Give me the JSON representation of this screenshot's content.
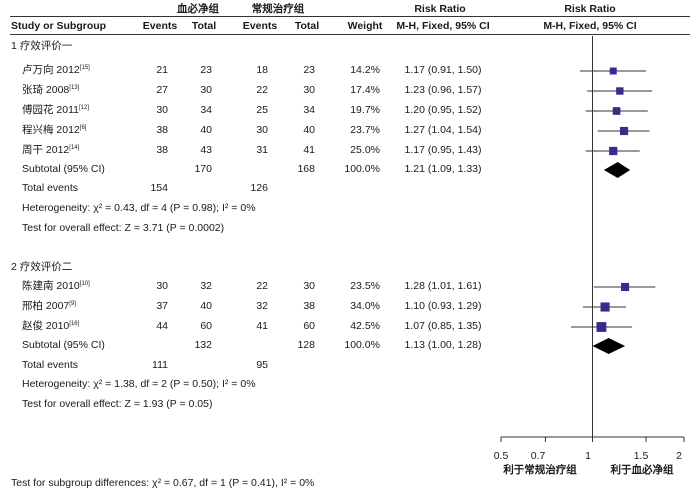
{
  "header": {
    "group1": "血必净组",
    "group2": "常规治疗组",
    "rr1": "Risk Ratio",
    "rr2": "Risk Ratio",
    "study": "Study or Subgroup",
    "events1": "Events",
    "total1": "Total",
    "events2": "Events",
    "total2": "Total",
    "weight": "Weight",
    "method1": "M-H, Fixed, 95% CI",
    "method2": "M-H, Fixed, 95% CI"
  },
  "subgroups": [
    {
      "title": "1  疗效评价一",
      "studies": [
        {
          "name": "卢万向 2012",
          "ref": "[15]",
          "e1": "21",
          "t1": "23",
          "e2": "18",
          "t2": "23",
          "weight": "14.2%",
          "ci": "1.17 (0.91, 1.50)"
        },
        {
          "name": "张琦 2008",
          "ref": "[13]",
          "e1": "27",
          "t1": "30",
          "e2": "22",
          "t2": "30",
          "weight": "17.4%",
          "ci": "1.23 (0.96, 1.57)"
        },
        {
          "name": "傅园花 2011",
          "ref": "[12]",
          "e1": "30",
          "t1": "34",
          "e2": "25",
          "t2": "34",
          "weight": "19.7%",
          "ci": "1.20 (0.95, 1.52)"
        },
        {
          "name": "程兴梅 2012",
          "ref": "[6]",
          "e1": "38",
          "t1": "40",
          "e2": "30",
          "t2": "40",
          "weight": "23.7%",
          "ci": "1.27 (1.04, 1.54)"
        },
        {
          "name": "周干 2012",
          "ref": "[14]",
          "e1": "38",
          "t1": "43",
          "e2": "31",
          "t2": "41",
          "weight": "25.0%",
          "ci": "1.17 (0.95, 1.43)"
        }
      ],
      "subtotal": {
        "label": "Subtotal (95% CI)",
        "t1": "170",
        "t2": "168",
        "weight": "100.0%",
        "ci": "1.21 (1.09, 1.33)"
      },
      "total_events": {
        "label": "Total events",
        "e1": "154",
        "e2": "126"
      },
      "heterogeneity": "Heterogeneity: χ² = 0.43, df = 4 (P = 0.98); I² = 0%",
      "overall": "Test for overall effect: Z = 3.71 (P = 0.0002)"
    },
    {
      "title": "2  疗效评价二",
      "studies": [
        {
          "name": "陈建南 2010",
          "ref": "[10]",
          "e1": "30",
          "t1": "32",
          "e2": "22",
          "t2": "30",
          "weight": "23.5%",
          "ci": "1.28 (1.01, 1.61)"
        },
        {
          "name": "邢柏 2007",
          "ref": "[9]",
          "e1": "37",
          "t1": "40",
          "e2": "32",
          "t2": "38",
          "weight": "34.0%",
          "ci": "1.10 (0.93, 1.29)"
        },
        {
          "name": "赵俊 2010",
          "ref": "[16]",
          "e1": "44",
          "t1": "60",
          "e2": "41",
          "t2": "60",
          "weight": "42.5%",
          "ci": "1.07 (0.85, 1.35)"
        }
      ],
      "subtotal": {
        "label": "Subtotal (95% CI)",
        "t1": "132",
        "t2": "128",
        "weight": "100.0%",
        "ci": "1.13 (1.00, 1.28)"
      },
      "total_events": {
        "label": "Total events",
        "e1": "111",
        "e2": "95"
      },
      "heterogeneity": "Heterogeneity: χ² = 1.38, df = 2 (P = 0.50); I² = 0%",
      "overall": "Test for overall effect: Z = 1.93 (P = 0.05)"
    }
  ],
  "subgroup_diff": "Test for subgroup differences: χ² = 0.67, df = 1 (P = 0.41), I² = 0%",
  "axis": {
    "ticks": [
      "0.5",
      "0.7",
      "1",
      "1.5",
      "2"
    ],
    "favours_left": "利于常规治疗组",
    "favours_right": "利于血必净组"
  },
  "chart_data": {
    "type": "scatter",
    "scale": "log",
    "xlim": [
      0.5,
      2
    ],
    "xticks": [
      0.5,
      0.7,
      1,
      1.5,
      2
    ],
    "reference_line": 1,
    "colors": {
      "study_marker": "#3a2a8c",
      "diamond": "#000000",
      "line": "#333333"
    },
    "studies": [
      {
        "subgroup": 0,
        "name": "卢万向 2012",
        "rr": 1.17,
        "lo": 0.91,
        "hi": 1.5,
        "weight": 14.2
      },
      {
        "subgroup": 0,
        "name": "张琦 2008",
        "rr": 1.23,
        "lo": 0.96,
        "hi": 1.57,
        "weight": 17.4
      },
      {
        "subgroup": 0,
        "name": "傅园花 2011",
        "rr": 1.2,
        "lo": 0.95,
        "hi": 1.52,
        "weight": 19.7
      },
      {
        "subgroup": 0,
        "name": "程兴梅 2012",
        "rr": 1.27,
        "lo": 1.04,
        "hi": 1.54,
        "weight": 23.7
      },
      {
        "subgroup": 0,
        "name": "周干 2012",
        "rr": 1.17,
        "lo": 0.95,
        "hi": 1.43,
        "weight": 25.0
      },
      {
        "subgroup": 1,
        "name": "陈建南 2010",
        "rr": 1.28,
        "lo": 1.01,
        "hi": 1.61,
        "weight": 23.5
      },
      {
        "subgroup": 1,
        "name": "邢柏 2007",
        "rr": 1.1,
        "lo": 0.93,
        "hi": 1.29,
        "weight": 34.0
      },
      {
        "subgroup": 1,
        "name": "赵俊 2010",
        "rr": 1.07,
        "lo": 0.85,
        "hi": 1.35,
        "weight": 42.5
      }
    ],
    "subtotals": [
      {
        "subgroup": 0,
        "rr": 1.21,
        "lo": 1.09,
        "hi": 1.33
      },
      {
        "subgroup": 1,
        "rr": 1.13,
        "lo": 1.0,
        "hi": 1.28
      }
    ]
  }
}
